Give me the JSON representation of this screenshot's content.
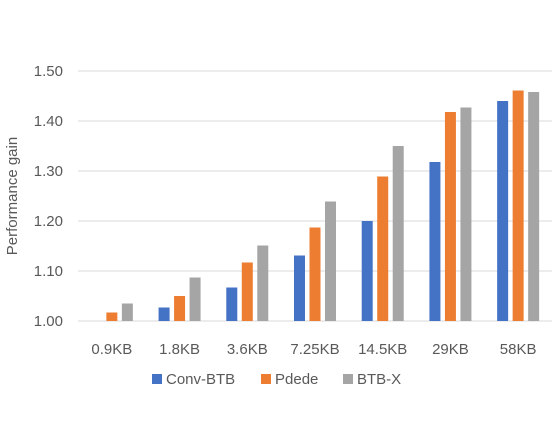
{
  "chart_data": {
    "type": "bar",
    "title": "",
    "xlabel": "",
    "ylabel": "Performance gain",
    "categories": [
      "0.9KB",
      "1.8KB",
      "3.6KB",
      "7.25KB",
      "14.5KB",
      "29KB",
      "58KB"
    ],
    "series": [
      {
        "name": "Conv-BTB",
        "color": "#4472C4",
        "values": [
          1.0,
          1.027,
          1.067,
          1.131,
          1.2,
          1.318,
          1.44
        ]
      },
      {
        "name": "Pdede",
        "color": "#ED7D31",
        "values": [
          1.017,
          1.05,
          1.117,
          1.187,
          1.289,
          1.418,
          1.461
        ]
      },
      {
        "name": "BTB-X",
        "color": "#A5A5A5",
        "values": [
          1.035,
          1.087,
          1.151,
          1.239,
          1.35,
          1.427,
          1.458
        ]
      }
    ],
    "ylim": [
      1.0,
      1.5
    ],
    "yticks": [
      "1.00",
      "1.10",
      "1.20",
      "1.30",
      "1.40",
      "1.50"
    ],
    "grid": true,
    "legend_position": "bottom"
  }
}
